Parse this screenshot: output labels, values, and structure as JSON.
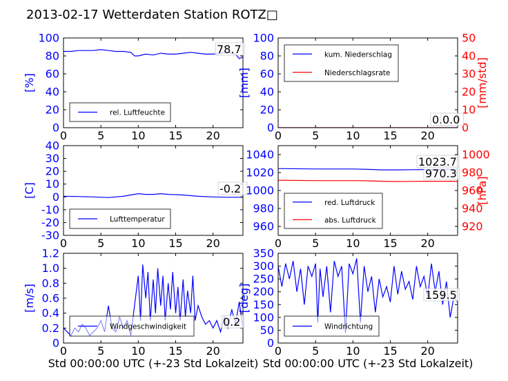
{
  "title": "2013-02-17 Wetterdaten Station ROTZ□",
  "chart_data": [
    {
      "id": "humidity",
      "type": "line",
      "xlim": [
        0,
        24
      ],
      "xticks": [
        0,
        5,
        10,
        15,
        20
      ],
      "ylim": [
        0,
        100
      ],
      "yticks": [
        0,
        20,
        40,
        60,
        80,
        100
      ],
      "ylabel": "[%]",
      "ytick_color": "#0000ff",
      "annotations": [
        "78.7"
      ],
      "series": [
        {
          "name": "rel. Luftfeuchte",
          "color": "#0000ff",
          "x": [
            0,
            1,
            2,
            3,
            4,
            5,
            6,
            7,
            8,
            9,
            9.5,
            10,
            11,
            12,
            13,
            14,
            15,
            16,
            17,
            18,
            19,
            20,
            21,
            22,
            23,
            23.5,
            24
          ],
          "y": [
            85,
            85,
            86,
            86,
            86,
            87,
            86,
            85,
            85,
            84,
            80,
            80,
            82,
            81,
            83,
            82,
            82,
            83,
            84,
            83,
            82,
            82,
            83,
            84,
            82,
            77,
            78.7
          ]
        }
      ]
    },
    {
      "id": "precipitation",
      "type": "line",
      "xlim": [
        0,
        24
      ],
      "xticks": [
        0,
        5,
        10,
        15,
        20
      ],
      "ylim": [
        0,
        100
      ],
      "yticks": [
        0,
        20,
        40,
        60,
        80,
        100
      ],
      "ylabel": "[mm]",
      "ytick_color": "#0000ff",
      "ylim_right": [
        0,
        50
      ],
      "yticks_right": [
        0,
        10,
        20,
        30,
        40,
        50
      ],
      "ylabel_right": "[mm/std]",
      "ytick_right_color": "#ff0000",
      "annotations": [
        "0.0",
        "0.0"
      ],
      "series": [
        {
          "name": "kum. Niederschlag",
          "color": "#0000ff",
          "axis": "left",
          "x": [
            0,
            24
          ],
          "y": [
            0,
            0
          ]
        },
        {
          "name": "Niederschlagsrate",
          "color": "#ff0000",
          "axis": "right",
          "x": [
            0,
            24
          ],
          "y": [
            0,
            0
          ]
        }
      ]
    },
    {
      "id": "temperature",
      "type": "line",
      "xlim": [
        0,
        24
      ],
      "xticks": [
        0,
        5,
        10,
        15,
        20
      ],
      "ylim": [
        -30,
        40
      ],
      "yticks": [
        -30,
        -20,
        -10,
        0,
        10,
        20,
        30,
        40
      ],
      "ylabel": "[C]",
      "ytick_color": "#0000ff",
      "annotations": [
        "-0.2"
      ],
      "series": [
        {
          "name": "Lufttemperatur",
          "color": "#0000ff",
          "x": [
            0,
            2,
            4,
            6,
            8,
            9,
            10,
            11,
            12,
            13,
            14,
            16,
            18,
            20,
            22,
            24
          ],
          "y": [
            0.5,
            0.3,
            0,
            -0.5,
            0.5,
            1.5,
            2.5,
            2,
            2,
            2.5,
            2,
            1.5,
            0.5,
            0,
            -0.3,
            -0.2
          ]
        }
      ]
    },
    {
      "id": "pressure",
      "type": "line",
      "xlim": [
        0,
        24
      ],
      "xticks": [
        0,
        5,
        10,
        15,
        20
      ],
      "ylim": [
        950,
        1050
      ],
      "yticks": [
        960,
        980,
        1000,
        1020,
        1040
      ],
      "ytick_color": "#0000ff",
      "ylim_right": [
        910,
        1010
      ],
      "yticks_right": [
        920,
        940,
        960,
        980,
        1000
      ],
      "ylabel_right": "[hPa]",
      "ytick_right_color": "#ff0000",
      "annotations": [
        "1023.7",
        "970.3"
      ],
      "series": [
        {
          "name": "red. Luftdruck",
          "color": "#0000ff",
          "axis": "left",
          "x": [
            0,
            5,
            10,
            12,
            14,
            16,
            18,
            20,
            22,
            24
          ],
          "y": [
            1024.5,
            1024,
            1024,
            1023.5,
            1023,
            1023,
            1023.2,
            1023.4,
            1023.6,
            1023.7
          ]
        },
        {
          "name": "abs. Luftdruck",
          "color": "#ff0000",
          "axis": "right",
          "x": [
            0,
            5,
            10,
            12,
            14,
            16,
            18,
            20,
            22,
            24
          ],
          "y": [
            971.5,
            971,
            971,
            970.8,
            970.3,
            970,
            970.2,
            970.3,
            970.3,
            970.3
          ]
        }
      ]
    },
    {
      "id": "windspeed",
      "type": "line",
      "xlim": [
        0,
        24
      ],
      "xticks": [
        0,
        5,
        10,
        15,
        20
      ],
      "xlabel": "Std 00:00:00 UTC (+-23 Std Lokalzeit)",
      "ylim": [
        0,
        1.2
      ],
      "yticks": [
        0.0,
        0.2,
        0.4,
        0.6,
        0.8,
        1.0,
        1.2
      ],
      "ylabel": "[m/s]",
      "ytick_color": "#0000ff",
      "annotations": [
        "0.2"
      ],
      "series": [
        {
          "name": "Windgeschwindigkeit",
          "color": "#0000ff",
          "x": [
            0,
            0.5,
            1,
            1.5,
            2,
            2.5,
            3,
            3.5,
            4,
            4.5,
            5,
            5.5,
            6,
            6.5,
            7,
            7.5,
            8,
            8.5,
            9,
            9.5,
            10,
            10.3,
            10.6,
            11,
            11.3,
            11.6,
            12,
            12.3,
            12.6,
            13,
            13.3,
            13.6,
            14,
            14.3,
            14.6,
            15,
            15.3,
            15.6,
            16,
            16.3,
            16.6,
            17,
            17.3,
            17.6,
            18,
            18.5,
            19,
            19.5,
            20,
            20.5,
            21,
            21.5,
            22,
            22.5,
            23,
            23.5,
            24
          ],
          "y": [
            0.2,
            0.15,
            0.1,
            0.2,
            0.15,
            0.25,
            0.2,
            0.1,
            0.15,
            0.2,
            0.3,
            0.15,
            0.5,
            0.2,
            0.15,
            0.35,
            0.2,
            0.3,
            0.1,
            0.5,
            0.9,
            0.3,
            1.05,
            0.6,
            0.95,
            0.3,
            0.85,
            0.4,
            1.0,
            0.5,
            0.9,
            0.3,
            0.8,
            0.45,
            0.95,
            0.4,
            0.75,
            0.3,
            0.85,
            0.35,
            0.7,
            0.4,
            0.9,
            0.3,
            0.5,
            0.35,
            0.25,
            0.3,
            0.2,
            0.3,
            0.15,
            0.35,
            0.2,
            0.45,
            0.25,
            0.55,
            0.2
          ]
        }
      ]
    },
    {
      "id": "winddirection",
      "type": "line",
      "xlim": [
        0,
        24
      ],
      "xticks": [
        0,
        5,
        10,
        15,
        20
      ],
      "xlabel": "Std 00:00:00 UTC (+-23 Std Lokalzeit)",
      "ylim": [
        0,
        350
      ],
      "yticks": [
        0,
        50,
        100,
        150,
        200,
        250,
        300,
        350
      ],
      "ylabel": "[deg]",
      "ytick_color": "#0000ff",
      "annotations": [
        "159.5"
      ],
      "series": [
        {
          "name": "Windrichtung",
          "color": "#0000ff",
          "x": [
            0,
            0.5,
            1,
            1.5,
            2,
            2.5,
            3,
            3.5,
            4,
            4.5,
            5,
            5.3,
            5.6,
            6,
            6.5,
            7,
            7.5,
            8,
            8.5,
            9,
            9.5,
            10,
            10.5,
            11,
            11.5,
            12,
            12.5,
            13,
            13.5,
            14,
            14.5,
            15,
            15.5,
            16,
            16.5,
            17,
            17.5,
            18,
            18.5,
            19,
            19.5,
            20,
            20.5,
            21,
            21.5,
            22,
            22.5,
            23,
            23.5,
            24
          ],
          "y": [
            300,
            220,
            310,
            250,
            320,
            200,
            290,
            150,
            300,
            260,
            310,
            80,
            290,
            180,
            300,
            120,
            320,
            260,
            300,
            40,
            310,
            270,
            330,
            80,
            300,
            200,
            260,
            120,
            250,
            180,
            220,
            160,
            300,
            190,
            280,
            210,
            240,
            170,
            300,
            220,
            260,
            180,
            310,
            200,
            280,
            150,
            240,
            100,
            180,
            160
          ]
        }
      ]
    }
  ]
}
